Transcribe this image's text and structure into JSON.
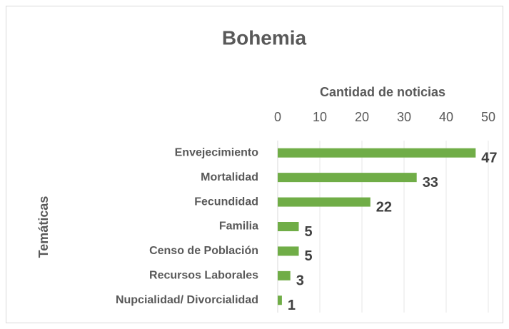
{
  "chart_data": {
    "type": "bar",
    "orientation": "horizontal",
    "title": "Bohemia",
    "x_axis_label": "Cantidad de noticias",
    "y_axis_label": "Temáticas",
    "categories": [
      "Envejecimiento",
      "Mortalidad",
      "Fecundidad",
      "Familia",
      "Censo de Población",
      "Recursos Laborales",
      "Nupcialidad/ Divorcialidad"
    ],
    "values": [
      47,
      33,
      22,
      5,
      5,
      3,
      1
    ],
    "color": "#70ad47",
    "xlim": [
      0,
      50
    ],
    "xticks": [
      0,
      10,
      20,
      30,
      40,
      50
    ],
    "grid": true,
    "x_axis_position": "top"
  }
}
